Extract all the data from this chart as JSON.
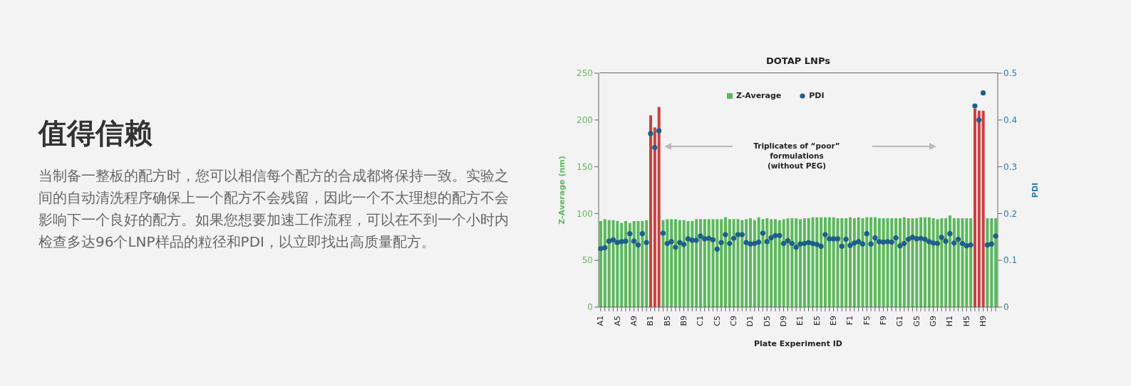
{
  "chart_data": {
    "type": "bar",
    "title": "DOTAP LNPs",
    "xlabel": "Plate Experiment ID",
    "ylabel": "Z-Average (nm)",
    "y2label": "PDI",
    "annotations": [
      "值得信赖",
      "当制备一整板的配方时，您可以相信每个配方的合成都将保持一致。实验之间的自动清洗程序确保上一个配方不会残留，因此一个不太理想的配方不会影响下一个良好的配方。如果您想要加速工作流程，可以在不到一个小时内检查多达96个LNP样品的粒径和PDI，以立即找出高质量配方。",
      "Triplicates of “poor” formulations\n(without PEG)"
    ],
    "categories": [
      "A1",
      null,
      null,
      null,
      "A5",
      null,
      null,
      null,
      "A9",
      null,
      null,
      null,
      "B1",
      null,
      null,
      null,
      "B5",
      null,
      null,
      null,
      "B9",
      null,
      null,
      null,
      "C1",
      null,
      null,
      null,
      "C5",
      null,
      null,
      null,
      "C9",
      null,
      null,
      null,
      "D1",
      null,
      null,
      null,
      "D5",
      null,
      null,
      null,
      "D9",
      null,
      null,
      null,
      "E1",
      null,
      null,
      null,
      "E5",
      null,
      null,
      null,
      "E9",
      null,
      null,
      null,
      "F1",
      null,
      null,
      null,
      "F5",
      null,
      null,
      null,
      "F9",
      null,
      null,
      null,
      "G1",
      null,
      null,
      null,
      "G5",
      null,
      null,
      null,
      "G9",
      null,
      null,
      null,
      "H1",
      null,
      null,
      null,
      "H5",
      null,
      null,
      null,
      "H9",
      null,
      null,
      null
    ],
    "series": [
      {
        "name": "Z-Average",
        "color": "#5cb85c",
        "values": [
          92,
          94,
          93,
          93,
          92,
          90,
          92,
          90,
          92,
          92,
          92,
          93,
          205,
          192,
          214,
          93,
          94,
          94,
          94,
          93,
          93,
          92,
          92,
          94,
          94,
          94,
          94,
          94,
          94,
          94,
          96,
          94,
          94,
          94,
          93,
          94,
          95,
          93,
          96,
          94,
          95,
          94,
          94,
          93,
          94,
          95,
          95,
          95,
          94,
          95,
          95,
          96,
          96,
          96,
          96,
          96,
          96,
          95,
          95,
          95,
          96,
          95,
          96,
          95,
          96,
          96,
          96,
          95,
          95,
          95,
          95,
          95,
          95,
          96,
          95,
          95,
          95,
          96,
          96,
          96,
          95,
          94,
          95,
          95,
          98,
          95,
          95,
          95,
          95,
          95,
          212,
          210,
          210,
          95,
          95,
          95
        ],
        "colors": [
          "#5cb85c",
          "#5cb85c",
          "#5cb85c",
          "#5cb85c",
          "#5cb85c",
          "#5cb85c",
          "#5cb85c",
          "#5cb85c",
          "#5cb85c",
          "#5cb85c",
          "#5cb85c",
          "#5cb85c",
          "#c8413f",
          "#c8413f",
          "#c8413f",
          "#5cb85c",
          "#5cb85c",
          "#5cb85c",
          "#5cb85c",
          "#5cb85c",
          "#5cb85c",
          "#5cb85c",
          "#5cb85c",
          "#5cb85c",
          "#5cb85c",
          "#5cb85c",
          "#5cb85c",
          "#5cb85c",
          "#5cb85c",
          "#5cb85c",
          "#5cb85c",
          "#5cb85c",
          "#5cb85c",
          "#5cb85c",
          "#5cb85c",
          "#5cb85c",
          "#5cb85c",
          "#5cb85c",
          "#5cb85c",
          "#5cb85c",
          "#5cb85c",
          "#5cb85c",
          "#5cb85c",
          "#5cb85c",
          "#5cb85c",
          "#5cb85c",
          "#5cb85c",
          "#5cb85c",
          "#5cb85c",
          "#5cb85c",
          "#5cb85c",
          "#5cb85c",
          "#5cb85c",
          "#5cb85c",
          "#5cb85c",
          "#5cb85c",
          "#5cb85c",
          "#5cb85c",
          "#5cb85c",
          "#5cb85c",
          "#5cb85c",
          "#5cb85c",
          "#5cb85c",
          "#5cb85c",
          "#5cb85c",
          "#5cb85c",
          "#5cb85c",
          "#5cb85c",
          "#5cb85c",
          "#5cb85c",
          "#5cb85c",
          "#5cb85c",
          "#5cb85c",
          "#5cb85c",
          "#5cb85c",
          "#5cb85c",
          "#5cb85c",
          "#5cb85c",
          "#5cb85c",
          "#5cb85c",
          "#5cb85c",
          "#5cb85c",
          "#5cb85c",
          "#5cb85c",
          "#5cb85c",
          "#5cb85c",
          "#5cb85c",
          "#5cb85c",
          "#5cb85c",
          "#5cb85c",
          "#c8413f",
          "#c8413f",
          "#c8413f",
          "#5cb85c",
          "#5cb85c",
          "#5cb85c"
        ]
      },
      {
        "name": "PDI",
        "type": "scatter",
        "axis": "y2",
        "color": "#1d5f8a",
        "values": [
          0.125,
          0.127,
          0.141,
          0.144,
          0.138,
          0.14,
          0.141,
          0.157,
          0.141,
          0.133,
          0.157,
          0.138,
          0.371,
          0.341,
          0.377,
          0.158,
          0.136,
          0.14,
          0.128,
          0.138,
          0.134,
          0.146,
          0.143,
          0.143,
          0.152,
          0.146,
          0.147,
          0.144,
          0.124,
          0.138,
          0.155,
          0.136,
          0.147,
          0.155,
          0.155,
          0.138,
          0.135,
          0.136,
          0.139,
          0.158,
          0.14,
          0.148,
          0.153,
          0.153,
          0.136,
          0.142,
          0.136,
          0.128,
          0.135,
          0.136,
          0.138,
          0.136,
          0.134,
          0.13,
          0.155,
          0.146,
          0.146,
          0.146,
          0.13,
          0.145,
          0.132,
          0.137,
          0.14,
          0.135,
          0.157,
          0.135,
          0.148,
          0.14,
          0.139,
          0.14,
          0.139,
          0.148,
          0.131,
          0.136,
          0.145,
          0.149,
          0.146,
          0.147,
          0.145,
          0.14,
          0.137,
          0.136,
          0.149,
          0.141,
          0.157,
          0.137,
          0.145,
          0.136,
          0.131,
          0.133,
          0.43,
          0.4,
          0.458,
          0.133,
          0.135,
          0.152
        ]
      }
    ],
    "ylim": [
      0,
      250
    ],
    "yticks": [
      0,
      50,
      100,
      150,
      200,
      250
    ],
    "y2lim": [
      0,
      0.5
    ],
    "y2ticks": [
      0,
      0.1,
      0.2,
      0.3,
      0.4,
      0.5
    ],
    "legend": "top",
    "marker": "circle"
  }
}
